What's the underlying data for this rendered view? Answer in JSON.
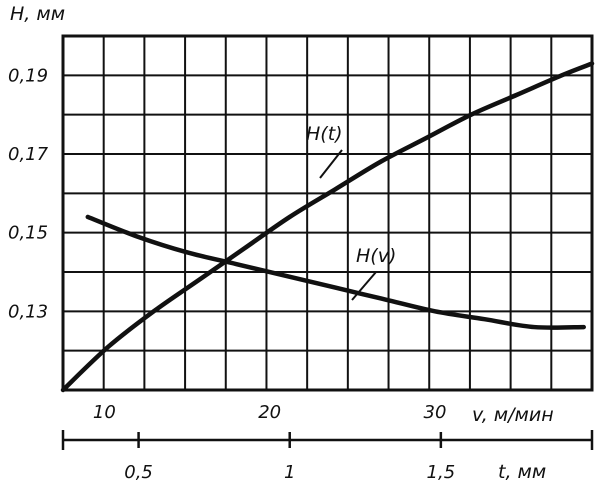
{
  "chart_data": {
    "type": "line",
    "ylabel": "H, мм",
    "xlabel_v": "v, м/мин",
    "xlabel_t": "t, мм",
    "y_ticks": [
      "0,19",
      "0,17",
      "0,15",
      "0,13"
    ],
    "y_tick_values": [
      0.19,
      0.17,
      0.15,
      0.13
    ],
    "ylim": [
      0.11,
      0.2
    ],
    "x_v_ticks": [
      "10",
      "20",
      "30"
    ],
    "x_v_tick_values": [
      10,
      20,
      30
    ],
    "x_v_range": [
      7.5,
      39.5
    ],
    "x_t_ticks": [
      "0,5",
      "1",
      "1,5"
    ],
    "x_t_tick_values": [
      0.5,
      1.0,
      1.5
    ],
    "x_t_range": [
      0.25,
      2.0
    ],
    "grid": true,
    "series": [
      {
        "name": "H(t)",
        "axis": "t",
        "x": [
          0.25,
          0.4,
          0.55,
          0.7,
          0.85,
          1.0,
          1.15,
          1.3,
          1.45,
          1.6,
          1.75,
          1.9,
          2.0
        ],
        "y": [
          0.11,
          0.121,
          0.13,
          0.138,
          0.146,
          0.154,
          0.161,
          0.168,
          0.174,
          0.18,
          0.185,
          0.19,
          0.193
        ]
      },
      {
        "name": "H(v)",
        "axis": "v",
        "x": [
          9,
          12,
          15,
          18,
          21,
          24,
          27,
          30,
          33,
          36,
          39
        ],
        "y": [
          0.154,
          0.149,
          0.145,
          0.142,
          0.139,
          0.136,
          0.133,
          0.13,
          0.128,
          0.126,
          0.126
        ]
      }
    ]
  }
}
